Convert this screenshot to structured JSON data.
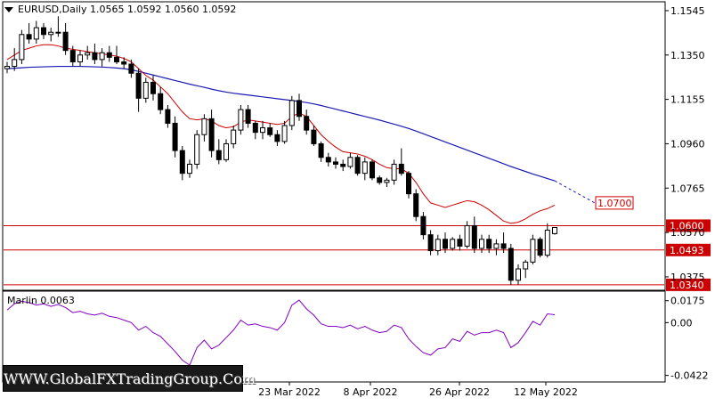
{
  "header": {
    "symbol": "EURUSD,Daily",
    "ohlc": "1.0565 1.0592 1.0560 1.0592"
  },
  "indicator": {
    "label": "Marlin 0.0063",
    "ticks": [
      "0.0175",
      "0.00",
      "-0.0422"
    ]
  },
  "watermark": "WWW.GlobalFXTradingGroup.Com",
  "colors": {
    "fast_ma": "#cc0000",
    "slow_ma": "#1a1ab3",
    "level_line": "#cc0000",
    "osc_line": "#8000c0",
    "candle": "#000000"
  },
  "chart_data": [
    {
      "type": "candlestick",
      "title": "EURUSD,Daily",
      "x_axis_labels": [
        "23 Mar 2022",
        "8 Apr 2022",
        "26 Apr 2022",
        "12 May 2022"
      ],
      "y_ticks": [
        "1.1545",
        "1.1350",
        "1.1155",
        "1.0960",
        "1.0765",
        "1.0570",
        "1.0375"
      ],
      "ylim": [
        1.032,
        1.158
      ],
      "horizontal_levels": [
        {
          "value": 1.06,
          "label": "1.0600"
        },
        {
          "value": 1.0493,
          "label": "1.0493"
        },
        {
          "value": 1.034,
          "label": "1.0340"
        }
      ],
      "target_label": {
        "value": 1.07,
        "label": "1.0700"
      },
      "candles": [
        [
          1.129,
          1.132,
          1.127,
          1.13
        ],
        [
          1.13,
          1.138,
          1.128,
          1.133
        ],
        [
          1.133,
          1.146,
          1.131,
          1.144
        ],
        [
          1.144,
          1.149,
          1.14,
          1.142
        ],
        [
          1.142,
          1.15,
          1.14,
          1.147
        ],
        [
          1.147,
          1.149,
          1.142,
          1.144
        ],
        [
          1.144,
          1.147,
          1.141,
          1.145
        ],
        [
          1.145,
          1.152,
          1.143,
          1.145
        ],
        [
          1.145,
          1.149,
          1.135,
          1.137
        ],
        [
          1.137,
          1.139,
          1.13,
          1.132
        ],
        [
          1.132,
          1.137,
          1.13,
          1.135
        ],
        [
          1.135,
          1.139,
          1.133,
          1.136
        ],
        [
          1.136,
          1.14,
          1.131,
          1.133
        ],
        [
          1.133,
          1.138,
          1.13,
          1.136
        ],
        [
          1.136,
          1.139,
          1.132,
          1.134
        ],
        [
          1.134,
          1.139,
          1.131,
          1.132
        ],
        [
          1.132,
          1.134,
          1.129,
          1.131
        ],
        [
          1.131,
          1.133,
          1.125,
          1.127
        ],
        [
          1.127,
          1.129,
          1.11,
          1.116
        ],
        [
          1.116,
          1.125,
          1.114,
          1.123
        ],
        [
          1.123,
          1.126,
          1.115,
          1.118
        ],
        [
          1.118,
          1.121,
          1.109,
          1.111
        ],
        [
          1.111,
          1.113,
          1.103,
          1.105
        ],
        [
          1.105,
          1.108,
          1.09,
          1.093
        ],
        [
          1.093,
          1.095,
          1.08,
          1.083
        ],
        [
          1.083,
          1.089,
          1.081,
          1.087
        ],
        [
          1.087,
          1.102,
          1.085,
          1.1
        ],
        [
          1.1,
          1.109,
          1.097,
          1.107
        ],
        [
          1.107,
          1.111,
          1.09,
          1.093
        ],
        [
          1.093,
          1.098,
          1.087,
          1.089
        ],
        [
          1.089,
          1.098,
          1.088,
          1.096
        ],
        [
          1.096,
          1.104,
          1.094,
          1.102
        ],
        [
          1.102,
          1.113,
          1.1,
          1.111
        ],
        [
          1.111,
          1.113,
          1.103,
          1.105
        ],
        [
          1.105,
          1.106,
          1.098,
          1.101
        ],
        [
          1.101,
          1.106,
          1.098,
          1.103
        ],
        [
          1.103,
          1.105,
          1.099,
          1.1
        ],
        [
          1.1,
          1.102,
          1.095,
          1.097
        ],
        [
          1.097,
          1.106,
          1.096,
          1.104
        ],
        [
          1.104,
          1.117,
          1.102,
          1.115
        ],
        [
          1.115,
          1.118,
          1.106,
          1.108
        ],
        [
          1.108,
          1.111,
          1.1,
          1.102
        ],
        [
          1.102,
          1.104,
          1.095,
          1.096
        ],
        [
          1.096,
          1.097,
          1.088,
          1.09
        ],
        [
          1.09,
          1.092,
          1.086,
          1.088
        ],
        [
          1.088,
          1.09,
          1.085,
          1.087
        ],
        [
          1.087,
          1.089,
          1.084,
          1.086
        ],
        [
          1.086,
          1.092,
          1.085,
          1.09
        ],
        [
          1.09,
          1.091,
          1.082,
          1.083
        ],
        [
          1.083,
          1.09,
          1.08,
          1.088
        ],
        [
          1.088,
          1.089,
          1.08,
          1.081
        ],
        [
          1.081,
          1.082,
          1.078,
          1.079
        ],
        [
          1.079,
          1.081,
          1.077,
          1.08
        ],
        [
          1.08,
          1.089,
          1.078,
          1.087
        ],
        [
          1.087,
          1.094,
          1.082,
          1.083
        ],
        [
          1.083,
          1.084,
          1.072,
          1.074
        ],
        [
          1.074,
          1.076,
          1.062,
          1.064
        ],
        [
          1.064,
          1.066,
          1.054,
          1.056
        ],
        [
          1.056,
          1.058,
          1.047,
          1.049
        ],
        [
          1.049,
          1.056,
          1.047,
          1.054
        ],
        [
          1.054,
          1.057,
          1.048,
          1.05
        ],
        [
          1.05,
          1.055,
          1.049,
          1.054
        ],
        [
          1.054,
          1.056,
          1.049,
          1.051
        ],
        [
          1.051,
          1.062,
          1.05,
          1.06
        ],
        [
          1.06,
          1.064,
          1.048,
          1.05
        ],
        [
          1.05,
          1.056,
          1.048,
          1.054
        ],
        [
          1.054,
          1.056,
          1.048,
          1.05
        ],
        [
          1.05,
          1.054,
          1.047,
          1.052
        ],
        [
          1.052,
          1.057,
          1.048,
          1.05
        ],
        [
          1.05,
          1.052,
          1.034,
          1.036
        ],
        [
          1.036,
          1.043,
          1.034,
          1.041
        ],
        [
          1.041,
          1.045,
          1.037,
          1.044
        ],
        [
          1.044,
          1.056,
          1.043,
          1.054
        ],
        [
          1.054,
          1.055,
          1.046,
          1.047
        ],
        [
          1.047,
          1.061,
          1.046,
          1.058
        ],
        [
          1.0565,
          1.0592,
          1.056,
          1.0592
        ]
      ],
      "fast_ma": [
        1.133,
        1.135,
        1.137,
        1.138,
        1.139,
        1.1395,
        1.1395,
        1.139,
        1.138,
        1.1375,
        1.137,
        1.1365,
        1.136,
        1.1355,
        1.135,
        1.1345,
        1.1335,
        1.132,
        1.129,
        1.126,
        1.124,
        1.121,
        1.118,
        1.114,
        1.11,
        1.107,
        1.1065,
        1.107,
        1.106,
        1.104,
        1.103,
        1.1035,
        1.1055,
        1.1065,
        1.106,
        1.1055,
        1.105,
        1.1045,
        1.105,
        1.108,
        1.1095,
        1.108,
        1.104,
        1.1,
        1.097,
        1.0945,
        1.0925,
        1.092,
        1.0915,
        1.0905,
        1.089,
        1.087,
        1.0855,
        1.085,
        1.085,
        1.083,
        1.079,
        1.074,
        1.07,
        1.069,
        1.068,
        1.069,
        1.07,
        1.071,
        1.0705,
        1.069,
        1.067,
        1.0645,
        1.062,
        1.061,
        1.0615,
        1.063,
        1.065,
        1.0665,
        1.0675,
        1.069
      ],
      "slow_ma": [
        1.129,
        1.1292,
        1.1294,
        1.1296,
        1.1297,
        1.1298,
        1.1299,
        1.13,
        1.13,
        1.13,
        1.13,
        1.1299,
        1.1298,
        1.1297,
        1.1295,
        1.1293,
        1.129,
        1.1285,
        1.1278,
        1.127,
        1.1262,
        1.1254,
        1.1246,
        1.1238,
        1.123,
        1.1222,
        1.1215,
        1.1208,
        1.12,
        1.1193,
        1.1187,
        1.1182,
        1.1178,
        1.1174,
        1.117,
        1.1166,
        1.1162,
        1.1158,
        1.1154,
        1.115,
        1.1146,
        1.1141,
        1.1135,
        1.1128,
        1.112,
        1.1112,
        1.1104,
        1.1096,
        1.1088,
        1.108,
        1.1072,
        1.1064,
        1.1055,
        1.1046,
        1.1037,
        1.1027,
        1.1016,
        1.1004,
        1.0992,
        1.098,
        1.0968,
        1.0956,
        1.0944,
        1.0932,
        1.092,
        1.0908,
        1.0896,
        1.0884,
        1.0872,
        1.086,
        1.0849,
        1.0838,
        1.0827,
        1.0817,
        1.0807,
        1.0797
      ]
    },
    {
      "type": "line",
      "title": "Marlin 0.0063",
      "ylim": [
        -0.046,
        0.023
      ],
      "y_ticks": [
        0.0175,
        0.0,
        -0.0422
      ],
      "series": [
        {
          "name": "Marlin",
          "values": [
            0.01,
            0.015,
            0.017,
            0.016,
            0.014,
            0.015,
            0.013,
            0.0145,
            0.012,
            0.008,
            0.009,
            0.007,
            0.006,
            0.0075,
            0.005,
            0.004,
            0.002,
            0.0,
            -0.006,
            -0.003,
            -0.008,
            -0.011,
            -0.017,
            -0.023,
            -0.03,
            -0.034,
            -0.02,
            -0.014,
            -0.021,
            -0.018,
            -0.012,
            -0.006,
            0.002,
            -0.002,
            -0.001,
            -0.003,
            -0.004,
            -0.006,
            0.0,
            0.014,
            0.018,
            0.011,
            0.006,
            -0.001,
            -0.003,
            -0.003,
            -0.004,
            -0.002,
            -0.005,
            -0.003,
            -0.006,
            -0.008,
            -0.007,
            -0.002,
            -0.004,
            -0.013,
            -0.019,
            -0.024,
            -0.026,
            -0.021,
            -0.02,
            -0.013,
            -0.015,
            -0.007,
            -0.01,
            -0.008,
            -0.008,
            -0.006,
            -0.008,
            -0.02,
            -0.016,
            -0.008,
            0.001,
            -0.002,
            0.007,
            0.0063
          ]
        }
      ]
    }
  ]
}
